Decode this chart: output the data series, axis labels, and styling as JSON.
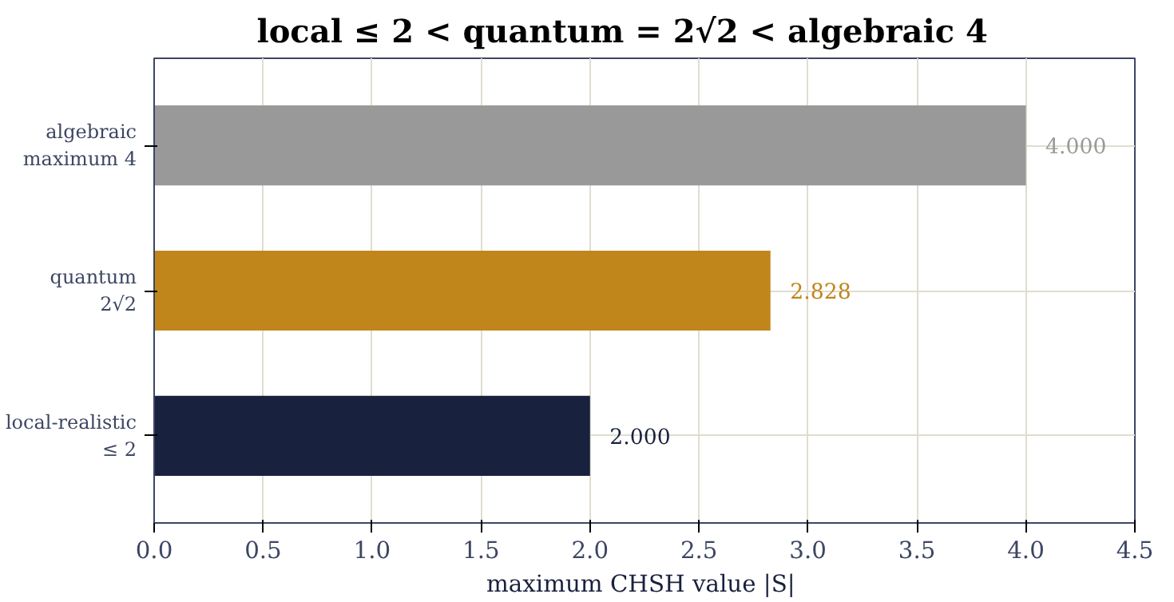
{
  "chart_data": {
    "type": "bar",
    "orientation": "horizontal",
    "title": "local ≤ 2  <  quantum = 2√2  <  algebraic 4",
    "xlabel": "maximum CHSH value  |S|",
    "categories": [
      "algebraic\nmaximum 4",
      "quantum\n2√2",
      "local-realistic\n≤ 2"
    ],
    "values": [
      4.0,
      2.828,
      2.0
    ],
    "colors": [
      "#999999",
      "#c0861b",
      "#18213d"
    ],
    "value_labels": [
      "4.000",
      "2.828",
      "2.000"
    ],
    "xlim": [
      0,
      4.5
    ],
    "xticks": [
      {
        "value": 0,
        "label": "0.0"
      },
      {
        "value": 0.5,
        "label": "0.5"
      },
      {
        "value": 1,
        "label": "1.0"
      },
      {
        "value": 1.5,
        "label": "1.5"
      },
      {
        "value": 2,
        "label": "2.0"
      },
      {
        "value": 2.5,
        "label": "2.5"
      },
      {
        "value": 3,
        "label": "3.0"
      },
      {
        "value": 3.5,
        "label": "3.5"
      },
      {
        "value": 4,
        "label": "4.0"
      },
      {
        "value": 4.5,
        "label": "4.5"
      }
    ],
    "grid": true
  }
}
